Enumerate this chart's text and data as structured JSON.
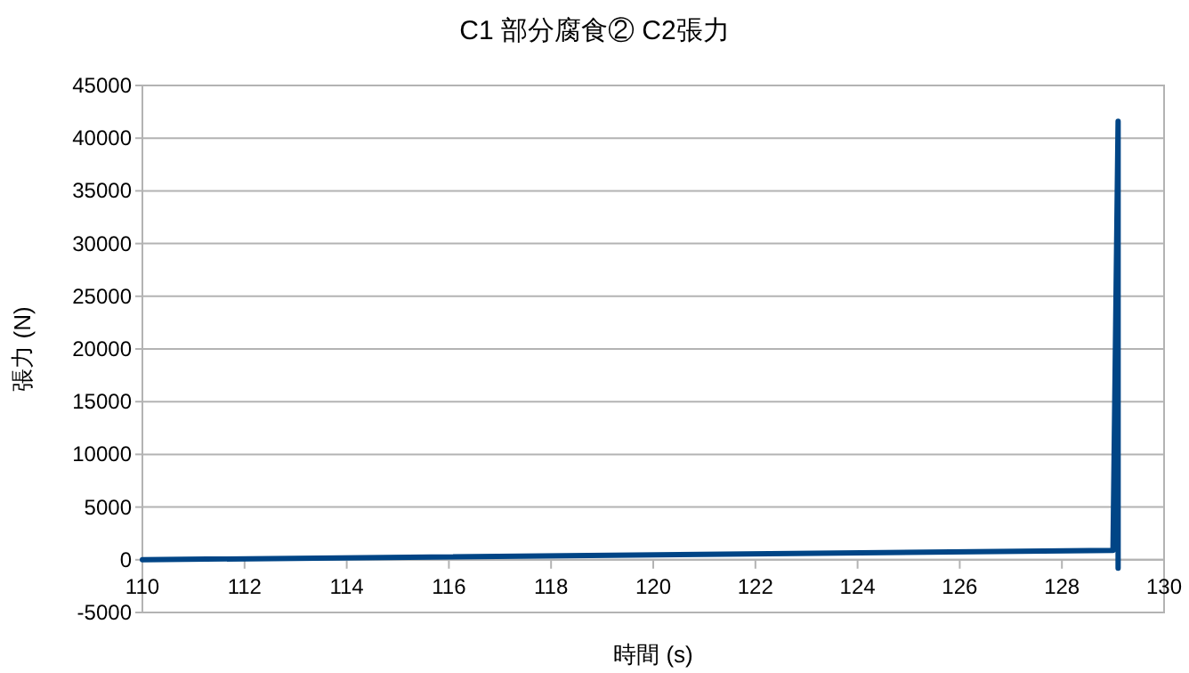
{
  "chart_data": {
    "type": "line",
    "title": "C1 部分腐食② C2張力",
    "xlabel": "時間 (s)",
    "ylabel": "張力 (N)",
    "x": [
      110,
      129.0,
      129.1,
      129.1
    ],
    "series": [
      {
        "color": "#004586",
        "values": [
          0,
          900,
          41600,
          -800
        ]
      }
    ],
    "xlim": [
      110,
      130
    ],
    "xticks": [
      110,
      112,
      114,
      116,
      118,
      120,
      122,
      124,
      126,
      128,
      130
    ],
    "ylim": [
      -5000,
      45000
    ],
    "yticks": [
      -5000,
      0,
      5000,
      10000,
      15000,
      20000,
      25000,
      30000,
      35000,
      40000,
      45000
    ],
    "grid": "y",
    "marker": "none",
    "line_style": "solid"
  }
}
